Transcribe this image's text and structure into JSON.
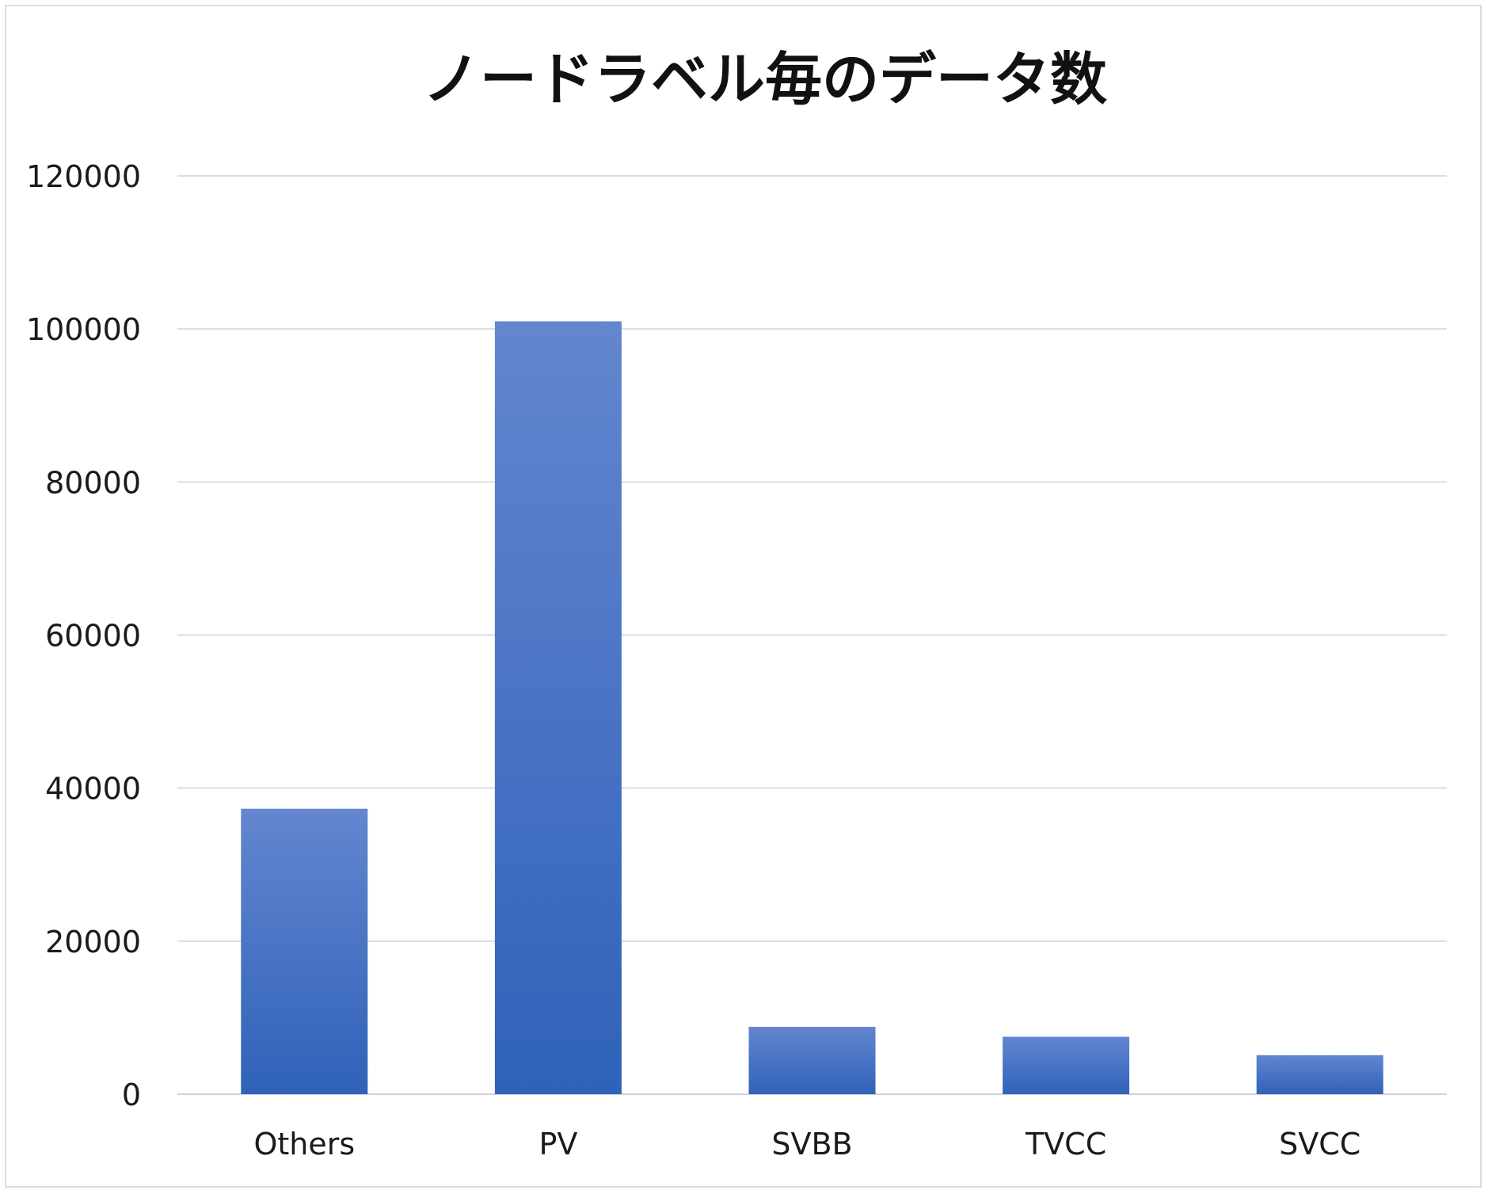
{
  "chart_data": {
    "type": "bar",
    "title": "ノードラベル毎のデータ数",
    "categories": [
      "Others",
      "PV",
      "SVBB",
      "TVCC",
      "SVCC"
    ],
    "values": [
      37300,
      101000,
      8800,
      7500,
      5100
    ],
    "xlabel": "",
    "ylabel": "",
    "ylim": [
      0,
      120000
    ],
    "yticks": [
      0,
      20000,
      40000,
      60000,
      80000,
      100000,
      120000
    ],
    "ytick_labels": [
      "0",
      "20000",
      "40000",
      "60000",
      "80000",
      "100000",
      "120000"
    ],
    "grid": true,
    "legend": "none",
    "bar_color_top": "#6386cf",
    "bar_color_bottom": "#2f62b9"
  }
}
